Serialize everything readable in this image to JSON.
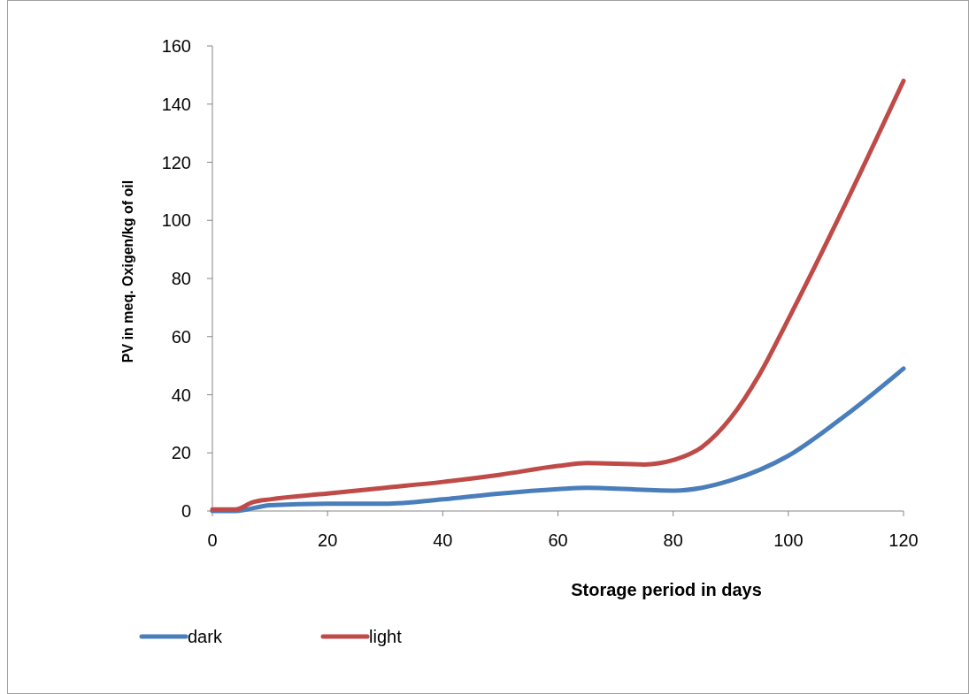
{
  "chart_data": {
    "type": "line",
    "xlabel": "Storage period in days",
    "ylabel": "PV in meq. Oxigen/kg of oil",
    "xlim": [
      0,
      120
    ],
    "xticks": [
      0,
      20,
      40,
      60,
      80,
      100,
      120
    ],
    "ylim": [
      0,
      160
    ],
    "yticks": [
      0,
      20,
      40,
      60,
      80,
      100,
      120,
      140,
      160
    ],
    "grid": false,
    "legend": "bottom left",
    "marker": "none",
    "line_style": "solid",
    "series": [
      {
        "name": "dark",
        "color": "#4a7ebb",
        "x": [
          0,
          4,
          10,
          20,
          30,
          40,
          50,
          60,
          65,
          80,
          85,
          90,
          100,
          110,
          120
        ],
        "values": [
          0,
          0,
          2,
          2.5,
          2.5,
          4,
          6,
          7.5,
          8,
          7,
          8,
          10.5,
          19,
          33,
          49
        ]
      },
      {
        "name": "light",
        "color": "#be4b48",
        "x": [
          0,
          4,
          7,
          10,
          20,
          30,
          40,
          50,
          60,
          65,
          75,
          80,
          85,
          90,
          95,
          100,
          110,
          120
        ],
        "values": [
          0.5,
          0.5,
          3,
          4,
          6,
          8,
          10,
          12.5,
          15.5,
          16.5,
          16,
          17.5,
          22,
          32,
          47,
          66,
          106,
          148
        ]
      }
    ]
  }
}
